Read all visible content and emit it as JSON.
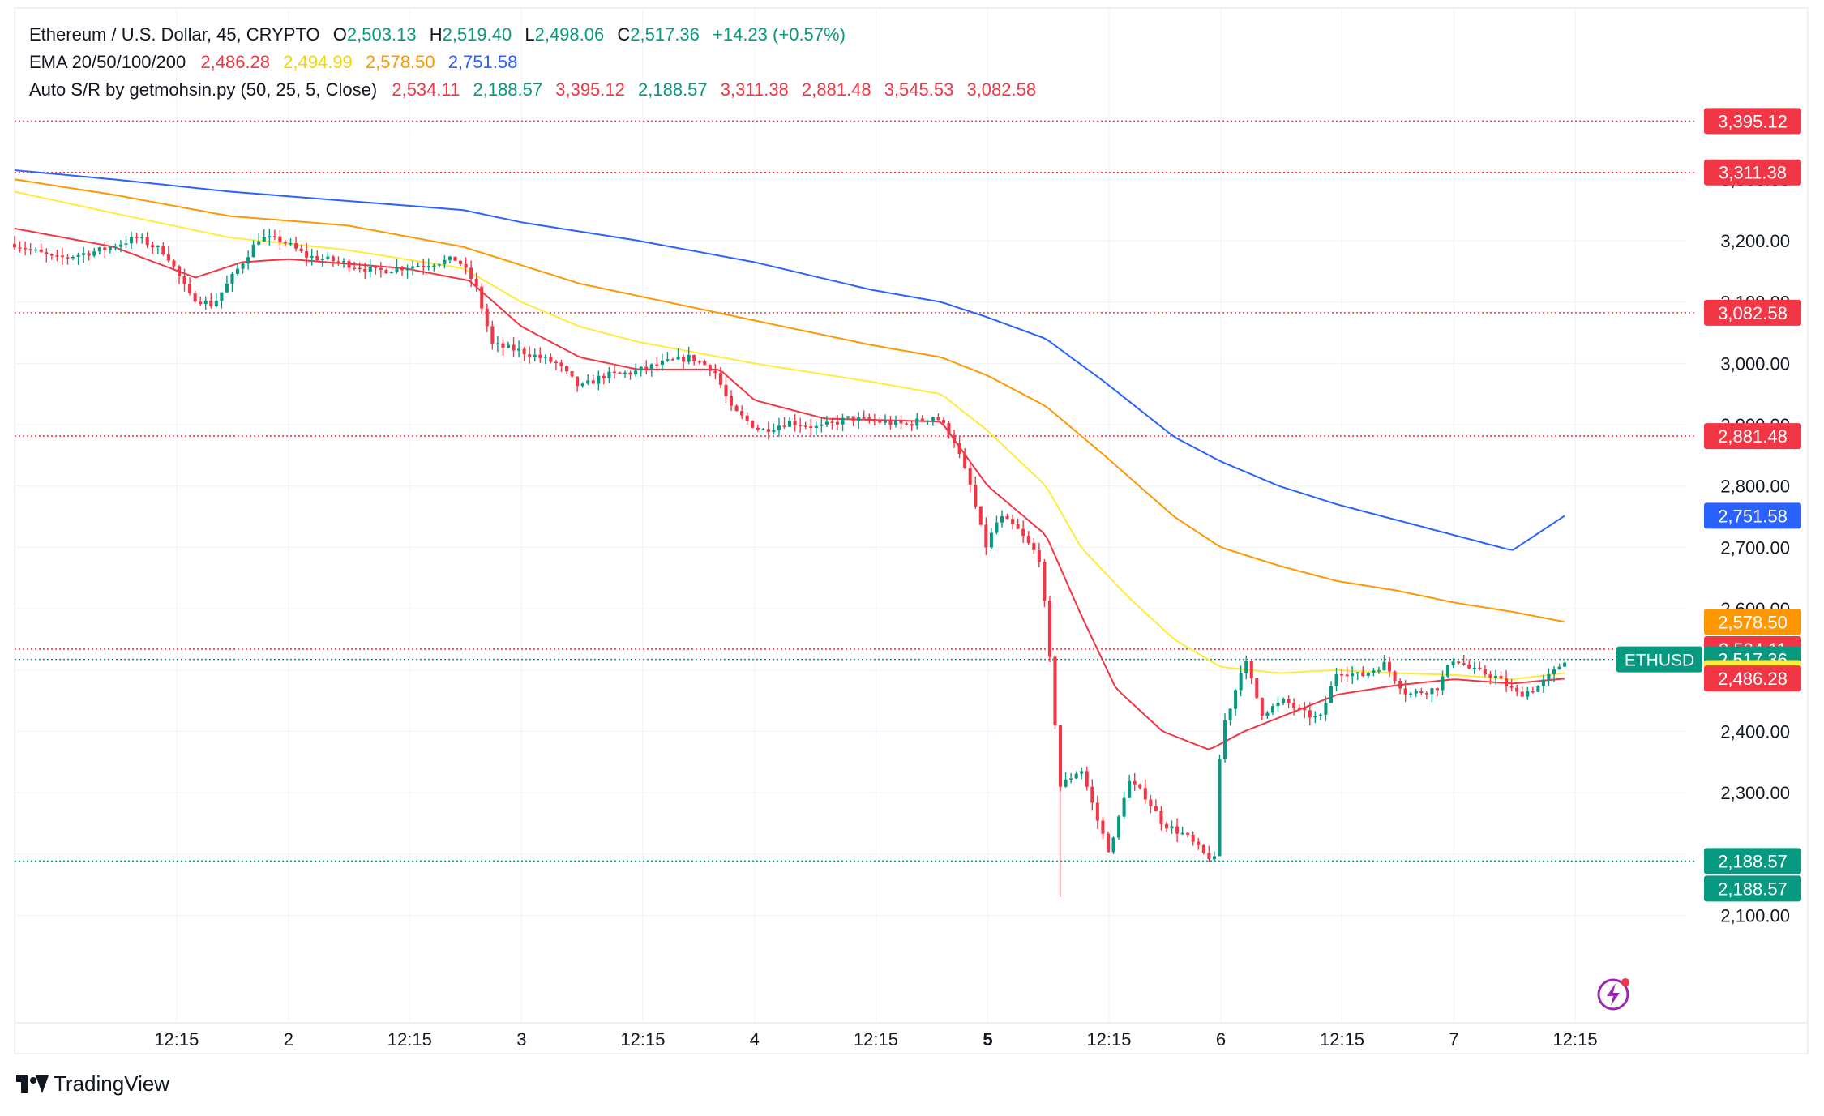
{
  "header": {
    "symbol_line": "Ethereum / U.S. Dollar, 45, CRYPTO",
    "ohlc": [
      {
        "label": "O",
        "value": "2,503.13"
      },
      {
        "label": "H",
        "value": "2,519.40"
      },
      {
        "label": "L",
        "value": "2,498.06"
      },
      {
        "label": "C",
        "value": "2,517.36"
      }
    ],
    "change": "+14.23 (+0.57%)",
    "ema_label": "EMA 20/50/100/200",
    "ema_values": [
      "2,486.28",
      "2,494.99",
      "2,578.50",
      "2,751.58"
    ],
    "sr_label": "Auto S/R by getmohsin.py (50, 25, 5, Close)",
    "sr_values": [
      "2,534.11",
      "2,188.57",
      "3,395.12",
      "2,188.57",
      "3,311.38",
      "2,881.48",
      "3,545.53",
      "3,082.58"
    ]
  },
  "colors": {
    "up": "#089981",
    "down": "#f23645",
    "ema20": "#f23645",
    "ema50": "#ffeb3b",
    "ema100": "#ff9800",
    "ema200": "#2962ff",
    "res_line": "#f23645",
    "sup_line": "#089981"
  },
  "chart_data": {
    "type": "candlestick",
    "ylim": [
      2020,
      3500
    ],
    "y_ticks": [
      2100,
      2200,
      2300,
      2400,
      2500,
      2600,
      2700,
      2800,
      2900,
      3000,
      3100,
      3200,
      3300
    ],
    "y_tick_labels": [
      "2,100.00",
      "2,200.00",
      "2,300.00",
      "2,400.00",
      "2,500.00",
      "2,600.00",
      "2,700.00",
      "2,800.00",
      "2,900.00",
      "3,000.00",
      "3,100.00",
      "3,200.00",
      "3,300.00"
    ],
    "x_ticks": [
      {
        "label": "12:15",
        "pos": 0.04
      },
      {
        "label": "2",
        "pos": 1.0
      },
      {
        "label": "12:15",
        "pos": 2.04
      },
      {
        "label": "3",
        "pos": 3.0
      },
      {
        "label": "12:15",
        "pos": 4.04
      },
      {
        "label": "4",
        "pos": 5.0
      },
      {
        "label": "12:15",
        "pos": 6.04
      },
      {
        "label": "5",
        "pos": 7.0,
        "bold": true
      },
      {
        "label": "12:15",
        "pos": 8.04
      },
      {
        "label": "6",
        "pos": 9.0
      },
      {
        "label": "12:15",
        "pos": 10.04
      },
      {
        "label": "7",
        "pos": 11.0
      },
      {
        "label": "12:15",
        "pos": 12.04
      }
    ],
    "x_range": [
      -1.35,
      12.45
    ],
    "candles_keypoints": [
      [
        -1.35,
        3195
      ],
      [
        -1.0,
        3170
      ],
      [
        -0.6,
        3185
      ],
      [
        -0.3,
        3205
      ],
      [
        -0.05,
        3180
      ],
      [
        0.15,
        3110
      ],
      [
        0.35,
        3095
      ],
      [
        0.55,
        3150
      ],
      [
        0.75,
        3205
      ],
      [
        0.95,
        3200
      ],
      [
        1.15,
        3175
      ],
      [
        1.45,
        3165
      ],
      [
        1.75,
        3150
      ],
      [
        2.1,
        3160
      ],
      [
        2.45,
        3170
      ],
      [
        2.6,
        3130
      ],
      [
        2.75,
        3030
      ],
      [
        3.0,
        3020
      ],
      [
        3.3,
        3000
      ],
      [
        3.5,
        2960
      ],
      [
        3.7,
        2980
      ],
      [
        3.95,
        2985
      ],
      [
        4.2,
        3000
      ],
      [
        4.45,
        3010
      ],
      [
        4.65,
        2990
      ],
      [
        4.8,
        2925
      ],
      [
        5.05,
        2890
      ],
      [
        5.3,
        2905
      ],
      [
        5.55,
        2895
      ],
      [
        5.8,
        2910
      ],
      [
        6.05,
        2905
      ],
      [
        6.3,
        2900
      ],
      [
        6.55,
        2915
      ],
      [
        6.7,
        2880
      ],
      [
        6.85,
        2800
      ],
      [
        6.98,
        2700
      ],
      [
        7.1,
        2750
      ],
      [
        7.25,
        2730
      ],
      [
        7.45,
        2680
      ],
      [
        7.55,
        2480
      ],
      [
        7.62,
        2310
      ],
      [
        7.8,
        2340
      ],
      [
        7.95,
        2250
      ],
      [
        8.05,
        2200
      ],
      [
        8.2,
        2320
      ],
      [
        8.35,
        2295
      ],
      [
        8.5,
        2250
      ],
      [
        8.7,
        2230
      ],
      [
        8.85,
        2200
      ],
      [
        8.95,
        2190
      ],
      [
        9.0,
        2400
      ],
      [
        9.1,
        2450
      ],
      [
        9.2,
        2520
      ],
      [
        9.35,
        2430
      ],
      [
        9.55,
        2450
      ],
      [
        9.7,
        2430
      ],
      [
        9.85,
        2420
      ],
      [
        10.0,
        2500
      ],
      [
        10.2,
        2490
      ],
      [
        10.4,
        2510
      ],
      [
        10.6,
        2460
      ],
      [
        10.85,
        2470
      ],
      [
        11.0,
        2520
      ],
      [
        11.15,
        2500
      ],
      [
        11.35,
        2490
      ],
      [
        11.55,
        2460
      ],
      [
        11.7,
        2470
      ],
      [
        11.85,
        2495
      ],
      [
        11.95,
        2517
      ]
    ],
    "ema_series": [
      {
        "name": "EMA 20",
        "color": "#f23645",
        "points": [
          [
            -1.35,
            3220
          ],
          [
            -0.5,
            3190
          ],
          [
            0.2,
            3140
          ],
          [
            0.6,
            3165
          ],
          [
            1.0,
            3170
          ],
          [
            2.0,
            3155
          ],
          [
            2.55,
            3135
          ],
          [
            3.0,
            3060
          ],
          [
            3.5,
            3010
          ],
          [
            4.0,
            2990
          ],
          [
            4.7,
            2990
          ],
          [
            5.0,
            2940
          ],
          [
            5.6,
            2910
          ],
          [
            6.6,
            2905
          ],
          [
            7.0,
            2800
          ],
          [
            7.5,
            2720
          ],
          [
            7.8,
            2590
          ],
          [
            8.1,
            2470
          ],
          [
            8.5,
            2400
          ],
          [
            8.9,
            2370
          ],
          [
            9.2,
            2400
          ],
          [
            9.6,
            2430
          ],
          [
            10.0,
            2460
          ],
          [
            10.5,
            2475
          ],
          [
            11.0,
            2485
          ],
          [
            11.5,
            2478
          ],
          [
            11.95,
            2486
          ]
        ]
      },
      {
        "name": "EMA 50",
        "color": "#ffeb3b",
        "points": [
          [
            -1.35,
            3280
          ],
          [
            -0.5,
            3245
          ],
          [
            0.5,
            3205
          ],
          [
            1.5,
            3185
          ],
          [
            2.5,
            3155
          ],
          [
            3.0,
            3100
          ],
          [
            3.5,
            3060
          ],
          [
            4.0,
            3035
          ],
          [
            5.0,
            3000
          ],
          [
            6.0,
            2970
          ],
          [
            6.6,
            2950
          ],
          [
            7.0,
            2890
          ],
          [
            7.5,
            2800
          ],
          [
            7.8,
            2700
          ],
          [
            8.2,
            2620
          ],
          [
            8.6,
            2550
          ],
          [
            9.0,
            2505
          ],
          [
            9.5,
            2495
          ],
          [
            10.0,
            2500
          ],
          [
            10.5,
            2495
          ],
          [
            11.0,
            2492
          ],
          [
            11.5,
            2485
          ],
          [
            11.95,
            2495
          ]
        ]
      },
      {
        "name": "EMA 100",
        "color": "#ff9800",
        "points": [
          [
            -1.35,
            3300
          ],
          [
            -0.5,
            3275
          ],
          [
            0.5,
            3240
          ],
          [
            1.5,
            3225
          ],
          [
            2.5,
            3190
          ],
          [
            3.0,
            3160
          ],
          [
            3.5,
            3130
          ],
          [
            4.0,
            3110
          ],
          [
            5.0,
            3070
          ],
          [
            6.0,
            3030
          ],
          [
            6.6,
            3010
          ],
          [
            7.0,
            2980
          ],
          [
            7.5,
            2930
          ],
          [
            8.0,
            2850
          ],
          [
            8.6,
            2750
          ],
          [
            9.0,
            2700
          ],
          [
            9.5,
            2670
          ],
          [
            10.0,
            2645
          ],
          [
            10.5,
            2630
          ],
          [
            11.0,
            2610
          ],
          [
            11.5,
            2595
          ],
          [
            11.95,
            2578.5
          ]
        ]
      },
      {
        "name": "EMA 200",
        "color": "#2962ff",
        "points": [
          [
            -1.35,
            3315
          ],
          [
            -0.5,
            3300
          ],
          [
            0.5,
            3280
          ],
          [
            1.5,
            3265
          ],
          [
            2.5,
            3250
          ],
          [
            3.0,
            3230
          ],
          [
            4.0,
            3200
          ],
          [
            5.0,
            3165
          ],
          [
            6.0,
            3120
          ],
          [
            6.6,
            3100
          ],
          [
            7.0,
            3075
          ],
          [
            7.5,
            3040
          ],
          [
            8.0,
            2970
          ],
          [
            8.6,
            2880
          ],
          [
            9.0,
            2840
          ],
          [
            9.5,
            2800
          ],
          [
            10.0,
            2770
          ],
          [
            10.5,
            2745
          ],
          [
            11.0,
            2720
          ],
          [
            11.5,
            2695
          ],
          [
            11.95,
            2751.58
          ]
        ]
      }
    ],
    "sr_levels": [
      {
        "value": 3395.12,
        "label": "3,395.12",
        "kind": "resistance"
      },
      {
        "value": 3311.38,
        "label": "3,311.38",
        "kind": "resistance"
      },
      {
        "value": 3082.58,
        "label": "3,082.58",
        "kind": "resistance"
      },
      {
        "value": 2881.48,
        "label": "2,881.48",
        "kind": "resistance"
      },
      {
        "value": 2534.11,
        "label": "2,534.11",
        "kind": "resistance"
      },
      {
        "value": 2188.57,
        "label": "2,188.57",
        "kind": "support"
      }
    ],
    "price_tags": [
      {
        "value": 3395.12,
        "label": "3,395.12",
        "bg": "#f23645",
        "fg": "#ffffff"
      },
      {
        "value": 3311.38,
        "label": "3,311.38",
        "bg": "#f23645",
        "fg": "#ffffff"
      },
      {
        "value": 3082.58,
        "label": "3,082.58",
        "bg": "#f23645",
        "fg": "#ffffff"
      },
      {
        "value": 2881.48,
        "label": "2,881.48",
        "bg": "#f23645",
        "fg": "#ffffff"
      },
      {
        "value": 2751.58,
        "label": "2,751.58",
        "bg": "#2962ff",
        "fg": "#ffffff"
      },
      {
        "value": 2578.5,
        "label": "2,578.50",
        "bg": "#ff9800",
        "fg": "#ffffff"
      },
      {
        "value": 2534.11,
        "label": "2,534.11",
        "bg": "#f23645",
        "fg": "#ffffff"
      },
      {
        "value": 2517.36,
        "label": "2,517.36",
        "bg": "#089981",
        "fg": "#ffffff"
      },
      {
        "value": 2494.99,
        "label": "2,494.99",
        "bg": "#ffeb3b",
        "fg": "#131722"
      },
      {
        "value": 2486.28,
        "label": "2,486.28",
        "bg": "#f23645",
        "fg": "#ffffff"
      },
      {
        "value": 2188.57,
        "label": "2,188.57",
        "bg": "#089981",
        "fg": "#ffffff"
      },
      {
        "value": 2188.57,
        "label": "2,188.57",
        "bg": "#089981",
        "fg": "#ffffff",
        "stack": 1
      }
    ],
    "symbol_tag": {
      "label": "ETHUSD",
      "value": 2517.36
    },
    "last_price": 2517.36
  },
  "footer": {
    "brand": "TradingView"
  }
}
